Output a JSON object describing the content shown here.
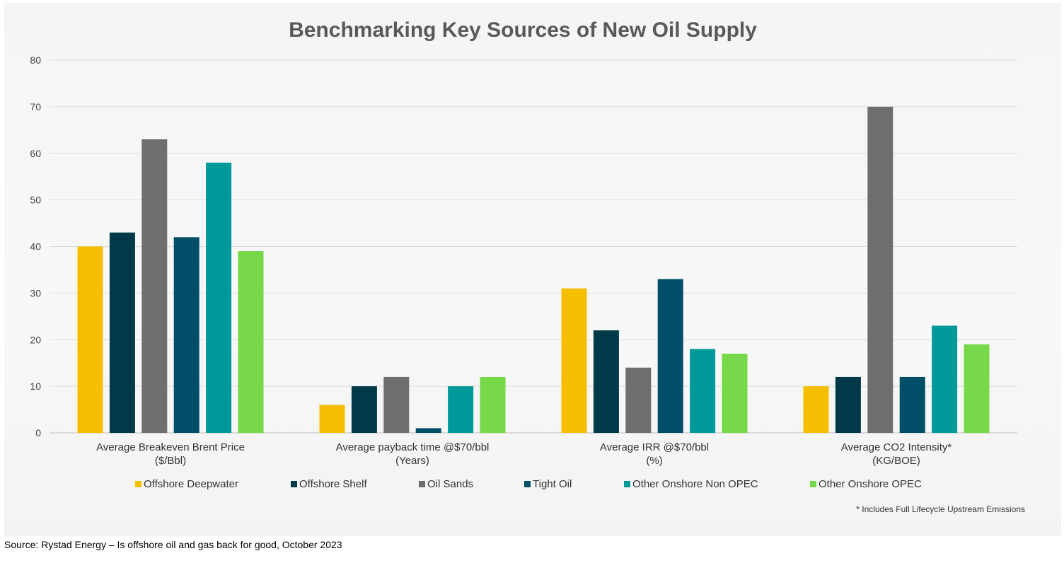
{
  "chart_data": {
    "type": "bar",
    "title": "Benchmarking Key Sources of New Oil Supply",
    "categories": [
      [
        "Average Breakeven Brent Price",
        "($/Bbl)"
      ],
      [
        "Average payback time @$70/bbl",
        "(Years)"
      ],
      [
        "Average IRR @$70/bbl",
        "(%)"
      ],
      [
        "Average CO2 Intensity*",
        "(KG/BOE)"
      ]
    ],
    "series": [
      {
        "name": "Offshore Deepwater",
        "color": "#F5BE00",
        "values": [
          40,
          6,
          31,
          10
        ]
      },
      {
        "name": "Offshore Shelf",
        "color": "#003A48",
        "values": [
          43,
          10,
          22,
          12
        ]
      },
      {
        "name": "Oil Sands",
        "color": "#6E6E6E",
        "values": [
          63,
          12,
          14,
          70
        ]
      },
      {
        "name": "Tight Oil",
        "color": "#004E68",
        "values": [
          42,
          1,
          33,
          12
        ]
      },
      {
        "name": "Other Onshore Non OPEC",
        "color": "#00999A",
        "values": [
          58,
          10,
          18,
          23
        ]
      },
      {
        "name": "Other Onshore OPEC",
        "color": "#77D84A",
        "values": [
          39,
          12,
          17,
          19
        ]
      }
    ],
    "yticks": [
      "0",
      "10",
      "20",
      "30",
      "40",
      "50",
      "60",
      "70",
      "80"
    ],
    "ylim": [
      0,
      80
    ],
    "grid": true,
    "legend_position": "bottom"
  },
  "footnote": "* Includes Full Lifecycle Upstream Emissions",
  "source": "Source: Rystad Energy – Is offshore oil and gas back for good, October 2023"
}
